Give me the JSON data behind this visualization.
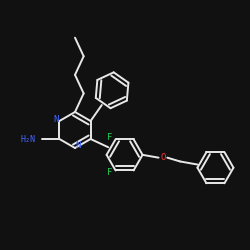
{
  "background_color": "#111111",
  "bond_color": "#e8e8e8",
  "label_colors": {
    "N": "#4466ff",
    "H2N": "#4466ff",
    "F": "#22cc55",
    "O": "#ff3333"
  },
  "figsize": [
    2.5,
    2.5
  ],
  "dpi": 100
}
